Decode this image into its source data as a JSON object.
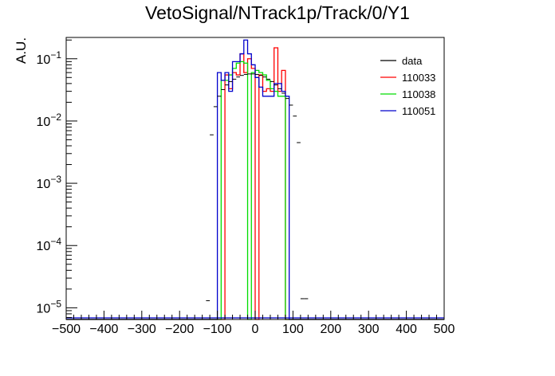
{
  "chart_data": {
    "type": "histogram",
    "title": "VetoSignal/NTrack1p/Track/0/Y1",
    "ylabel": "A.U.",
    "xlabel": "",
    "xlim": [
      -500,
      500
    ],
    "ylim": [
      6.5e-06,
      0.22
    ],
    "yscale": "log",
    "grid": false,
    "legend_position": "top-right",
    "x_ticks": [
      -500,
      -400,
      -300,
      -200,
      -100,
      0,
      100,
      200,
      300,
      400,
      500
    ],
    "y_ticks": [
      {
        "mantissa": "10",
        "exponent": "−5",
        "value": 1e-05
      },
      {
        "mantissa": "10",
        "exponent": "−4",
        "value": 0.0001
      },
      {
        "mantissa": "10",
        "exponent": "−3",
        "value": 0.001
      },
      {
        "mantissa": "10",
        "exponent": "−2",
        "value": 0.01
      },
      {
        "mantissa": "10",
        "exponent": "−1",
        "value": 0.1
      }
    ],
    "bin_edges": [
      -100,
      -90,
      -80,
      -70,
      -60,
      -50,
      -40,
      -30,
      -20,
      -10,
      0,
      10,
      20,
      30,
      40,
      50,
      60,
      70,
      80,
      90
    ],
    "series": [
      {
        "name": "data",
        "color": "#000000",
        "kind": "points",
        "x": [
          -125,
          -115,
          -105,
          -95,
          -85,
          -75,
          -65,
          -55,
          -45,
          -35,
          -25,
          -15,
          -5,
          5,
          15,
          25,
          35,
          45,
          55,
          65,
          75,
          85,
          95,
          105,
          115,
          125,
          135
        ],
        "y": [
          1.3e-05,
          0.006,
          0.017,
          0.025,
          0.032,
          0.038,
          0.043,
          0.047,
          0.051,
          0.054,
          0.056,
          0.057,
          0.057,
          0.056,
          0.054,
          0.051,
          0.047,
          0.043,
          0.038,
          0.033,
          0.028,
          0.023,
          0.018,
          0.012,
          0.0045,
          1.4e-05,
          1.4e-05
        ]
      },
      {
        "name": "110033",
        "color": "#ff0000",
        "kind": "step",
        "values": [
          0,
          0,
          0.055,
          0.033,
          0.06,
          0.055,
          0.12,
          0.06,
          0.1,
          0.07,
          0,
          0.055,
          0.03,
          0.033,
          0.03,
          0.15,
          0.03,
          0.065,
          0,
          0
        ]
      },
      {
        "name": "110038",
        "color": "#00dd00",
        "kind": "step",
        "values": [
          0,
          0.045,
          0.045,
          0.055,
          0.07,
          0.085,
          0.09,
          0.085,
          0,
          0.06,
          0.065,
          0.06,
          0.055,
          0.045,
          0.033,
          0.03,
          0.025,
          0.025,
          0,
          0
        ]
      },
      {
        "name": "110051",
        "color": "#0000cc",
        "kind": "step",
        "values": [
          0.06,
          0.045,
          0.06,
          0.03,
          0.09,
          0.09,
          0.12,
          0.2,
          0.12,
          0.08,
          0.05,
          0.035,
          0.025,
          0.025,
          0.025,
          0.04,
          0.04,
          0.03,
          0.025,
          0
        ]
      }
    ]
  }
}
